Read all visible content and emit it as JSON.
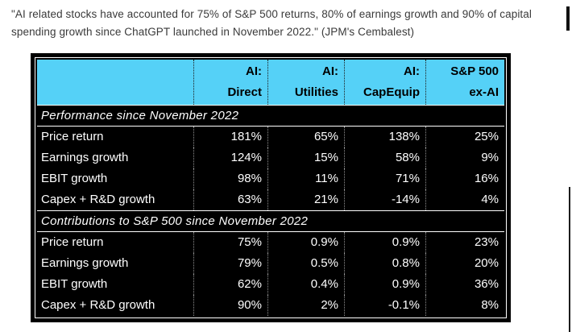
{
  "quote": "\"AI related stocks have accounted for 75% of S&P 500 returns, 80% of earnings growth and 90% of capital spending growth since ChatGPT launched in November 2022.\" (JPM's Cembalest)",
  "colors": {
    "page_bg": "#ffffff",
    "quote_text": "#3a3a3a",
    "header_bg": "#55d1f7",
    "table_bg": "#000000",
    "table_text": "#ffffff"
  },
  "chart_data": {
    "type": "table",
    "columns": [
      {
        "line1": "AI:",
        "line2": "Direct"
      },
      {
        "line1": "AI:",
        "line2": "Utilities"
      },
      {
        "line1": "AI:",
        "line2": "CapEquip"
      },
      {
        "line1": "S&P 500",
        "line2": "ex-AI"
      }
    ],
    "sections": [
      {
        "title": "Performance since November 2022",
        "rows": [
          {
            "label": "Price return",
            "values": [
              "181%",
              "65%",
              "138%",
              "25%"
            ]
          },
          {
            "label": "Earnings growth",
            "values": [
              "124%",
              "15%",
              "58%",
              "9%"
            ]
          },
          {
            "label": "EBIT growth",
            "values": [
              "98%",
              "11%",
              "71%",
              "16%"
            ]
          },
          {
            "label": "Capex + R&D growth",
            "values": [
              "63%",
              "21%",
              "-14%",
              "4%"
            ]
          }
        ]
      },
      {
        "title": "Contributions to S&P 500 since November 2022",
        "rows": [
          {
            "label": "Price return",
            "values": [
              "75%",
              "0.9%",
              "0.9%",
              "23%"
            ]
          },
          {
            "label": "Earnings growth",
            "values": [
              "79%",
              "0.5%",
              "0.8%",
              "20%"
            ]
          },
          {
            "label": "EBIT growth",
            "values": [
              "62%",
              "0.4%",
              "0.9%",
              "36%"
            ]
          },
          {
            "label": "Capex + R&D growth",
            "values": [
              "90%",
              "2%",
              "-0.1%",
              "8%"
            ]
          }
        ]
      }
    ]
  }
}
